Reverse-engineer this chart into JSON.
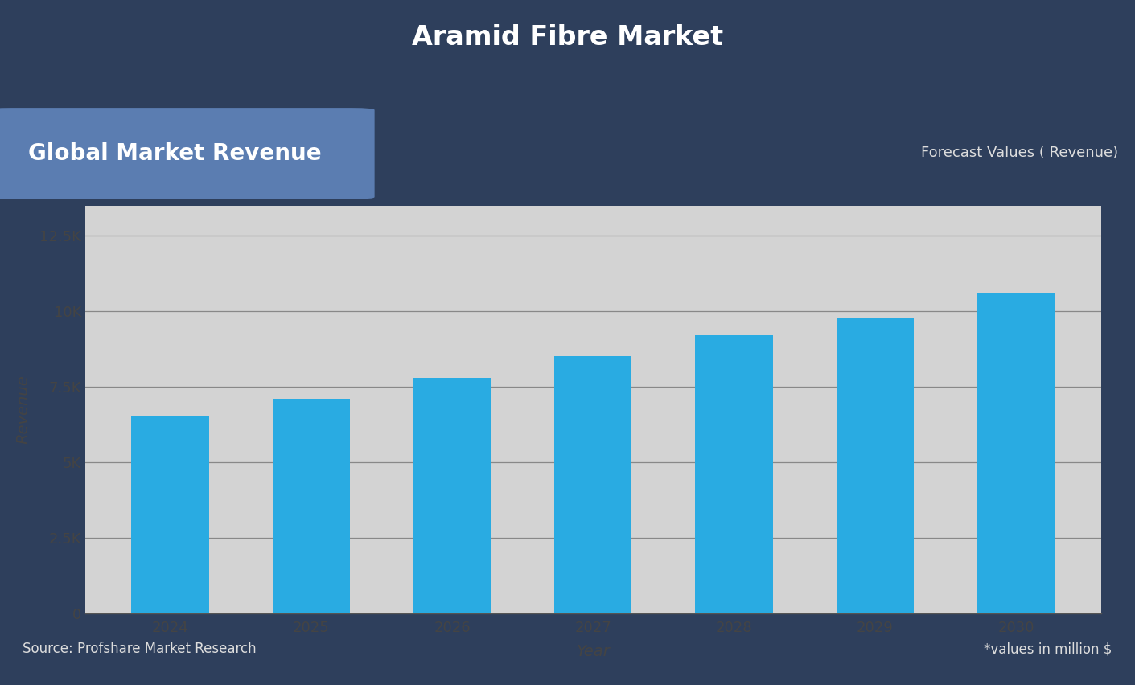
{
  "title": "Aramid Fibre Market",
  "subtitle_left": "Global Market Revenue",
  "subtitle_right": "Forecast Values ( Revenue)",
  "footer_left": "Source: Profshare Market Research",
  "footer_right": "*values in million $",
  "xlabel": "Year",
  "ylabel": "Revenue",
  "legend_label": "Revenue",
  "years": [
    2024,
    2025,
    2026,
    2027,
    2028,
    2029,
    2030
  ],
  "values": [
    6500,
    7100,
    7800,
    8500,
    9200,
    9800,
    10600
  ],
  "bar_color": "#29ABE2",
  "background_outer": "#2E3F5C",
  "background_plot": "#D3D3D3",
  "title_color": "#FFFFFF",
  "subtitle_left_bg": "#5B7DB1",
  "subtitle_left_color": "#FFFFFF",
  "subtitle_right_color": "#DDDDDD",
  "footer_color": "#DDDDDD",
  "ylabel_color": "#444444",
  "xlabel_color": "#444444",
  "tick_color": "#444444",
  "grid_color": "#888888",
  "ylim": [
    0,
    13500
  ],
  "yticks": [
    0,
    2500,
    5000,
    7500,
    10000,
    12500
  ]
}
